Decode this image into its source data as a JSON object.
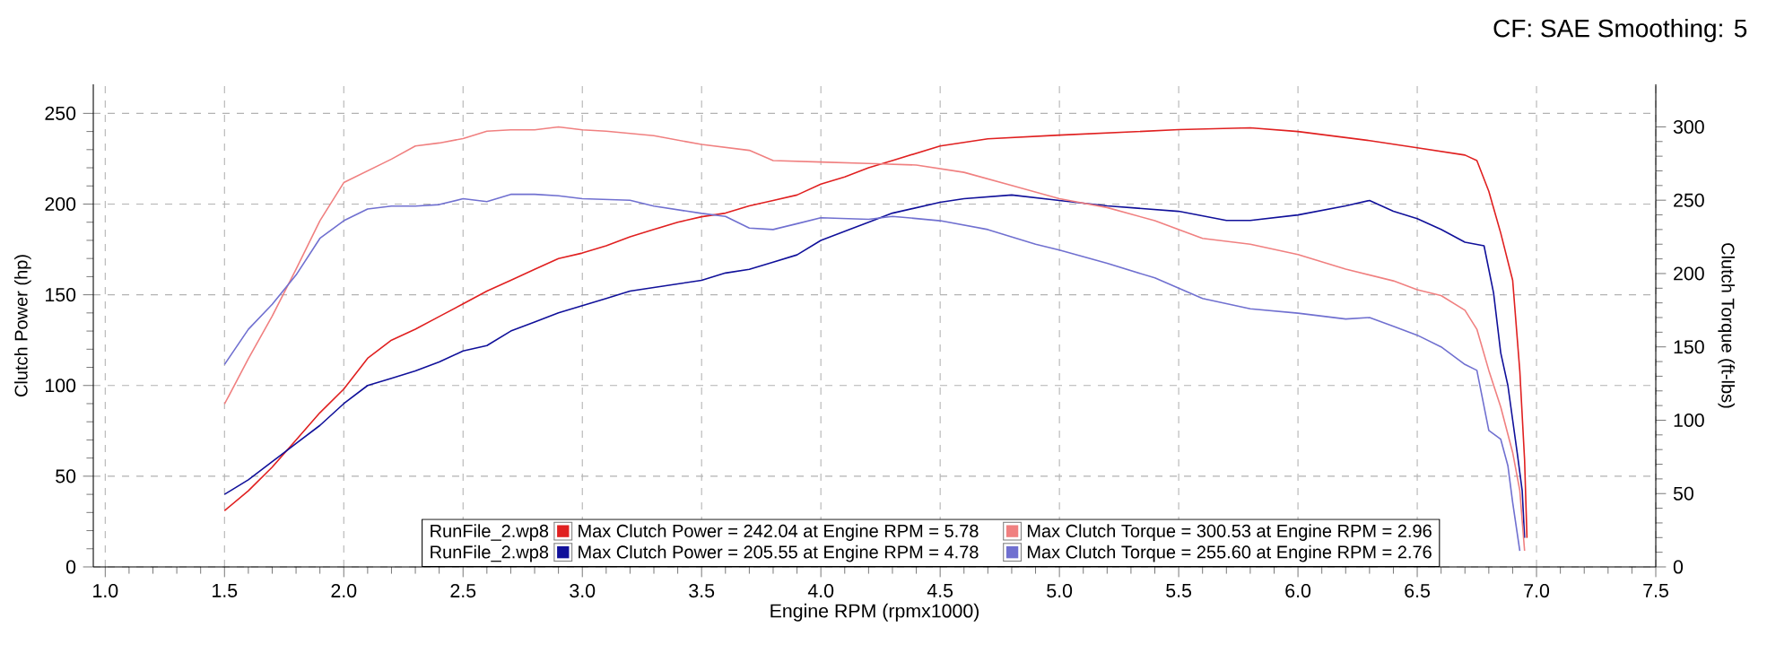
{
  "chart_data": {
    "type": "line",
    "subtitle": "CF: SAE Smoothing: 5",
    "xlabel": "Engine RPM (rpmx1000)",
    "ylabel": "Clutch Power (hp)",
    "y2label": "Clutch Torque (ft-lbs)",
    "annotations": [
      "RunFile_2.wp8",
      "RunFile_2.wp8"
    ],
    "xlim": [
      0.95,
      7.5
    ],
    "ylim": [
      0,
      266
    ],
    "y2lim": [
      0,
      329
    ],
    "xticks": [
      {
        "value": 1,
        "label": "1.0"
      },
      {
        "value": 1.5,
        "label": "1.5"
      },
      {
        "value": 2,
        "label": "2.0"
      },
      {
        "value": 2.5,
        "label": "2.5"
      },
      {
        "value": 3,
        "label": "3.0"
      },
      {
        "value": 3.5,
        "label": "3.5"
      },
      {
        "value": 4,
        "label": "4.0"
      },
      {
        "value": 4.5,
        "label": "4.5"
      },
      {
        "value": 5,
        "label": "5.0"
      },
      {
        "value": 5.5,
        "label": "5.5"
      },
      {
        "value": 6,
        "label": "6.0"
      },
      {
        "value": 6.5,
        "label": "6.5"
      },
      {
        "value": 7,
        "label": "7.0"
      },
      {
        "value": 7.5,
        "label": "7.5"
      }
    ],
    "yticks": [
      0,
      50,
      100,
      150,
      200,
      250
    ],
    "y2ticks": [
      0,
      50,
      100,
      150,
      200,
      250,
      300
    ],
    "grid": true,
    "legend": "bottom",
    "marker": "none",
    "line_style": "solid",
    "series": [
      {
        "name": "Max Clutch Power = 242.04 at Engine RPM = 5.78",
        "color": "#e02020",
        "x": [
          1.5,
          1.6,
          1.7,
          1.8,
          1.9,
          2.0,
          2.1,
          2.2,
          2.3,
          2.4,
          2.5,
          2.6,
          2.7,
          2.8,
          2.9,
          3.0,
          3.1,
          3.2,
          3.3,
          3.4,
          3.5,
          3.6,
          3.7,
          3.8,
          3.9,
          4.0,
          4.1,
          4.2,
          4.3,
          4.5,
          4.7,
          5.0,
          5.5,
          5.8,
          6.0,
          6.3,
          6.5,
          6.7,
          6.75,
          6.8,
          6.85,
          6.9,
          6.93,
          6.95,
          6.96
        ],
        "values": [
          31,
          42,
          55,
          70,
          85,
          98,
          115,
          125,
          131,
          138,
          145,
          152,
          158,
          164,
          170,
          173,
          177,
          182,
          186,
          190,
          193,
          195,
          199,
          202,
          205,
          211,
          215,
          220,
          224,
          232,
          236,
          238,
          241,
          242,
          240,
          235,
          231,
          227,
          224,
          207,
          184,
          158,
          108,
          59,
          16
        ]
      },
      {
        "name": "Max Clutch Power = 205.55 at Engine RPM = 4.78",
        "color": "#10109a",
        "x": [
          1.5,
          1.6,
          1.7,
          1.8,
          1.9,
          2.0,
          2.1,
          2.2,
          2.3,
          2.4,
          2.5,
          2.6,
          2.7,
          2.8,
          2.9,
          3.0,
          3.1,
          3.2,
          3.3,
          3.4,
          3.5,
          3.6,
          3.7,
          3.8,
          3.9,
          4.0,
          4.1,
          4.2,
          4.3,
          4.5,
          4.6,
          4.8,
          5.0,
          5.2,
          5.5,
          5.7,
          5.8,
          6.0,
          6.2,
          6.3,
          6.4,
          6.5,
          6.6,
          6.7,
          6.78,
          6.82,
          6.85,
          6.88,
          6.92,
          6.94,
          6.95
        ],
        "values": [
          40,
          48,
          58,
          68,
          78,
          90,
          100,
          104,
          108,
          113,
          119,
          122,
          130,
          135,
          140,
          144,
          148,
          152,
          154,
          156,
          158,
          162,
          164,
          168,
          172,
          180,
          185,
          190,
          195,
          201,
          203,
          205,
          202,
          199,
          196,
          191,
          191,
          194,
          199,
          202,
          196,
          192,
          186,
          179,
          177,
          151,
          118,
          100,
          62,
          42,
          16
        ]
      },
      {
        "name": "Max Clutch Torque = 300.53 at Engine RPM = 2.96",
        "color": "#f08080",
        "axis": "y2",
        "x": [
          1.5,
          1.6,
          1.7,
          1.8,
          1.9,
          2.0,
          2.2,
          2.3,
          2.4,
          2.5,
          2.6,
          2.7,
          2.8,
          2.9,
          3.0,
          3.1,
          3.3,
          3.5,
          3.7,
          3.8,
          4.0,
          4.2,
          4.4,
          4.6,
          4.8,
          5.0,
          5.2,
          5.4,
          5.6,
          5.8,
          6.0,
          6.2,
          6.4,
          6.5,
          6.6,
          6.7,
          6.75,
          6.8,
          6.85,
          6.9,
          6.93,
          6.95
        ],
        "values": [
          111,
          142,
          171,
          203,
          236,
          262,
          278,
          287,
          289,
          292,
          297,
          298,
          298,
          300,
          298,
          297,
          294,
          288,
          284,
          277,
          276,
          275,
          274,
          269,
          260,
          251,
          245,
          236,
          224,
          220,
          213,
          203,
          195,
          189,
          185,
          175,
          162,
          134,
          109,
          78,
          52,
          11
        ]
      },
      {
        "name": "Max Clutch Torque = 255.60 at Engine RPM = 2.76",
        "color": "#7070d0",
        "axis": "y2",
        "x": [
          1.5,
          1.55,
          1.6,
          1.7,
          1.8,
          1.9,
          2.0,
          2.1,
          2.2,
          2.3,
          2.4,
          2.5,
          2.6,
          2.7,
          2.8,
          2.9,
          3.0,
          3.2,
          3.3,
          3.5,
          3.6,
          3.7,
          3.8,
          3.9,
          4.0,
          4.2,
          4.3,
          4.5,
          4.7,
          4.9,
          5.0,
          5.2,
          5.4,
          5.6,
          5.8,
          6.0,
          6.2,
          6.3,
          6.4,
          6.5,
          6.6,
          6.7,
          6.75,
          6.8,
          6.85,
          6.88,
          6.9,
          6.93
        ],
        "values": [
          138,
          150,
          162,
          179,
          199,
          224,
          236,
          244,
          246,
          246,
          247,
          251,
          249,
          254,
          254,
          253,
          251,
          250,
          246,
          241,
          239,
          231,
          230,
          234,
          238,
          237,
          239,
          236,
          230,
          220,
          216,
          207,
          197,
          183,
          176,
          173,
          169,
          170,
          164,
          158,
          150,
          138,
          134,
          93,
          87,
          69,
          44,
          11
        ]
      }
    ]
  }
}
